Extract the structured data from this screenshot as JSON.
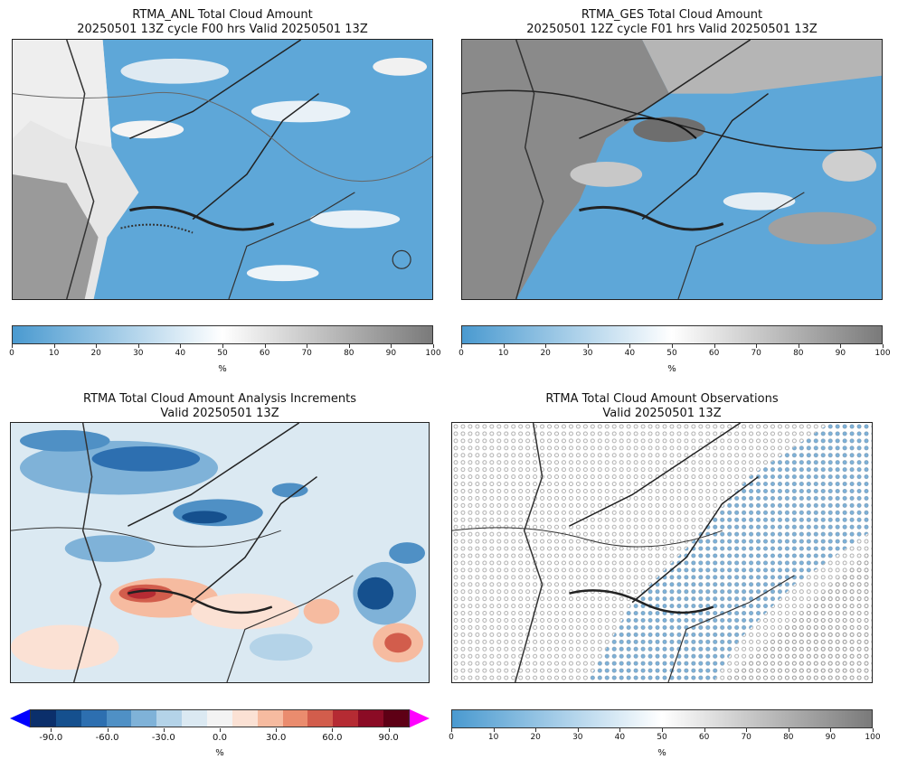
{
  "panels": [
    {
      "line1": "RTMA_ANL Total Cloud Amount",
      "line2": "20250501 13Z cycle F00 hrs Valid 20250501 13Z"
    },
    {
      "line1": "RTMA_GES Total Cloud Amount",
      "line2": "20250501 12Z cycle F01 hrs Valid 20250501 13Z"
    },
    {
      "line1": "RTMA Total Cloud Amount Analysis Increments",
      "line2": "Valid 20250501 13Z"
    },
    {
      "line1": "RTMA Total Cloud Amount Observations",
      "line2": "Valid 20250501 13Z"
    }
  ],
  "colorbar_pct": {
    "ticks": [
      "0",
      "10",
      "20",
      "30",
      "40",
      "50",
      "60",
      "70",
      "80",
      "90",
      "100"
    ],
    "unit": "%",
    "colors": [
      "#4a9ad0",
      "#ffffff",
      "#7a7a7a"
    ]
  },
  "colorbar_increment": {
    "ticks": [
      "-90.0",
      "-60.0",
      "-30.0",
      "0.0",
      "30.0",
      "60.0",
      "90.0"
    ],
    "unit": "%",
    "colors": [
      "#0b2f6b",
      "#15508e",
      "#2d6fb0",
      "#4f90c5",
      "#7fb2d8",
      "#b4d3e8",
      "#dbe9f2",
      "#f3f3f3",
      "#fbe1d4",
      "#f6bba0",
      "#ea8c6e",
      "#d25d4c",
      "#b52b33",
      "#8b0b25",
      "#5e0015"
    ],
    "under_color": "#0000ff",
    "over_color": "#ff00ff"
  }
}
